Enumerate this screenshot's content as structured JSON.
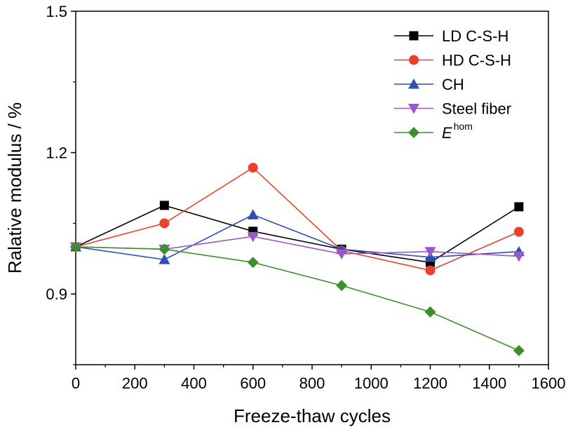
{
  "chart_data": {
    "type": "line",
    "title": "",
    "xlabel": "Freeze-thaw cycles",
    "ylabel": "Ralative modulus / %",
    "xlim": [
      0,
      1600
    ],
    "ylim": [
      0.75,
      1.5
    ],
    "x_ticks": [
      0,
      200,
      400,
      600,
      800,
      1000,
      1200,
      1400,
      1600
    ],
    "x_tick_labels": [
      "0",
      "200",
      "400",
      "600",
      "800",
      "1000",
      "1200",
      "1400",
      "1600"
    ],
    "y_ticks": [
      0.9,
      1.2,
      1.5
    ],
    "y_tick_labels": [
      "0.9",
      "1.2",
      "1.5"
    ],
    "y_minor_ticks": [
      0.75,
      1.05,
      1.35
    ],
    "grid": false,
    "legend_position": "top-right",
    "x": [
      0,
      300,
      600,
      900,
      1200,
      1500
    ],
    "series": [
      {
        "name": "LD  C-S-H",
        "name_sup": "",
        "name_italic": false,
        "color": "#000000",
        "marker": "square",
        "values": [
          1.0,
          1.088,
          1.033,
          0.995,
          0.967,
          1.085
        ]
      },
      {
        "name": "HD C-S-H",
        "name_sup": "",
        "name_italic": false,
        "color": "#e8412c",
        "marker": "circle",
        "values": [
          1.0,
          1.05,
          1.168,
          0.992,
          0.95,
          1.032
        ]
      },
      {
        "name": "CH",
        "name_sup": "",
        "name_italic": false,
        "color": "#2e4fb4",
        "marker": "triangle-up",
        "values": [
          1.0,
          0.973,
          1.068,
          0.995,
          0.978,
          0.99
        ]
      },
      {
        "name": "Steel fiber",
        "name_sup": "",
        "name_italic": false,
        "color": "#9b59c8",
        "marker": "triangle-down",
        "values": [
          1.0,
          0.995,
          1.022,
          0.985,
          0.99,
          0.98
        ]
      },
      {
        "name": "E",
        "name_sup": "hom",
        "name_italic": true,
        "color": "#3f8e2e",
        "marker": "diamond",
        "values": [
          1.0,
          0.995,
          0.967,
          0.918,
          0.862,
          0.78
        ]
      }
    ]
  }
}
